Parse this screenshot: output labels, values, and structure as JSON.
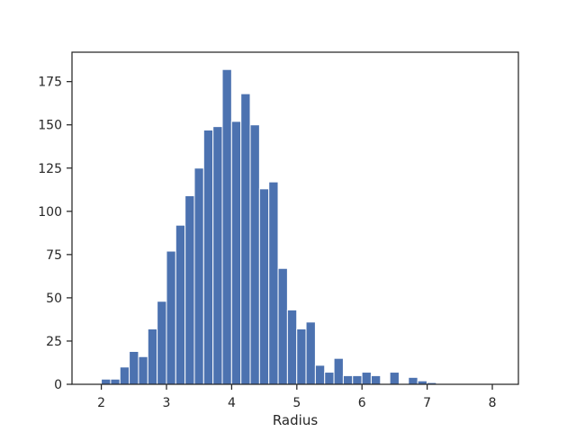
{
  "chart_data": {
    "type": "bar",
    "subtype": "histogram",
    "title": "",
    "xlabel": "Radius",
    "ylabel": "",
    "xlim": [
      1.55,
      8.4
    ],
    "ylim": [
      0,
      192
    ],
    "xticks": [
      2,
      3,
      4,
      5,
      6,
      7,
      8
    ],
    "yticks": [
      0,
      25,
      50,
      75,
      100,
      125,
      150,
      175
    ],
    "grid": false,
    "legend": "none",
    "bar_color": "#4c72b0",
    "bin_start": 2.0,
    "bin_width": 0.1428,
    "values": [
      3,
      3,
      10,
      19,
      16,
      32,
      48,
      77,
      92,
      109,
      125,
      147,
      149,
      182,
      152,
      168,
      150,
      113,
      117,
      67,
      43,
      32,
      36,
      11,
      7,
      15,
      5,
      5,
      7,
      5,
      0,
      7,
      0,
      4,
      2,
      1,
      0,
      0,
      0,
      0,
      0,
      0,
      0,
      0
    ]
  }
}
